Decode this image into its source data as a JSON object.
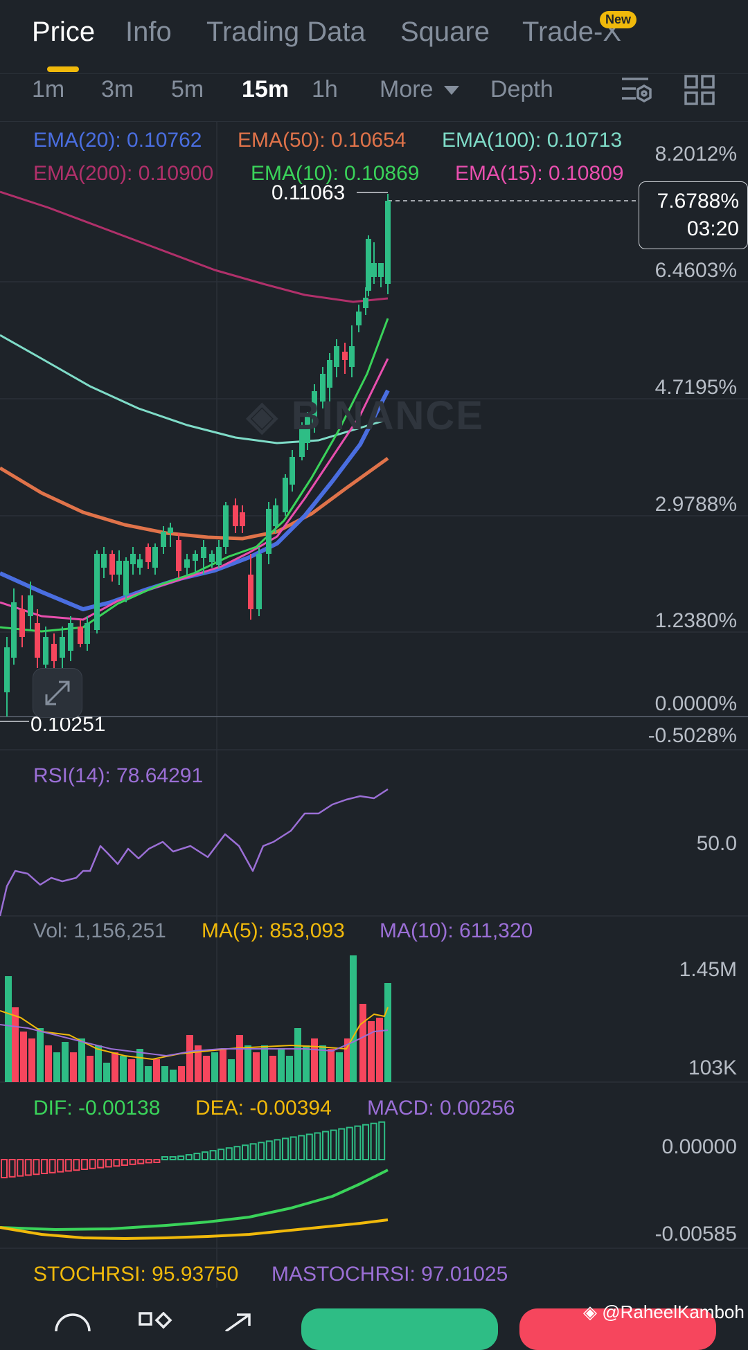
{
  "tabs": [
    {
      "label": "Price"
    },
    {
      "label": "Info"
    },
    {
      "label": "Trading Data"
    },
    {
      "label": "Square"
    },
    {
      "label": "Trade-X"
    }
  ],
  "new_badge": "New",
  "intervals": [
    {
      "label": "1m"
    },
    {
      "label": "3m"
    },
    {
      "label": "5m"
    },
    {
      "label": "15m"
    },
    {
      "label": "1h"
    }
  ],
  "more_label": "More",
  "depth_label": "Depth",
  "icons": [
    "settings-icon",
    "grid-icon",
    "expand-icon",
    "chevron-down-icon"
  ],
  "ema_legend": [
    {
      "text": "EMA(20): 0.10762",
      "color": "#4a6ee0"
    },
    {
      "text": "EMA(50): 0.10654",
      "color": "#e0734a"
    },
    {
      "text": "EMA(100): 0.10713",
      "color": "#7fdcc8"
    },
    {
      "text": "EMA(200): 0.10900",
      "color": "#b0306a"
    },
    {
      "text": "EMA(10): 0.10869",
      "color": "#3ad35a"
    },
    {
      "text": "EMA(15): 0.10809",
      "color": "#e84fae"
    }
  ],
  "price_axis": [
    "8.2012%",
    "6.4603%",
    "4.7195%",
    "2.9788%",
    "1.2380%",
    "0.0000%",
    "-0.5028%"
  ],
  "current": {
    "pct": "7.6788%",
    "countdown": "03:20"
  },
  "high_price": "0.11063",
  "low_price": "0.10251",
  "watermark": "BINANCE",
  "rsi": {
    "label": "RSI(14): 78.64291",
    "axis": "50.0"
  },
  "volume": {
    "vol": "Vol: 1,156,251",
    "ma5": "MA(5): 853,093",
    "ma10": "MA(10): 611,320",
    "axis_top": "1.45M",
    "axis_bottom": "103K"
  },
  "macd": {
    "dif": "DIF: -0.00138",
    "dea": "DEA: -0.00394",
    "macd": "MACD: 0.00256",
    "axis_top": "0.00000",
    "axis_bottom": "-0.00585"
  },
  "stoch": {
    "stochrsi": "STOCHRSI: 95.93750",
    "mastochrsi": "MASTOCHRSI: 97.01025"
  },
  "credit": "@RaheelKamboh",
  "colors": {
    "up": "#2ebd85",
    "down": "#f6465d",
    "accent": "#f0b90b",
    "bg": "#1e2329"
  }
}
